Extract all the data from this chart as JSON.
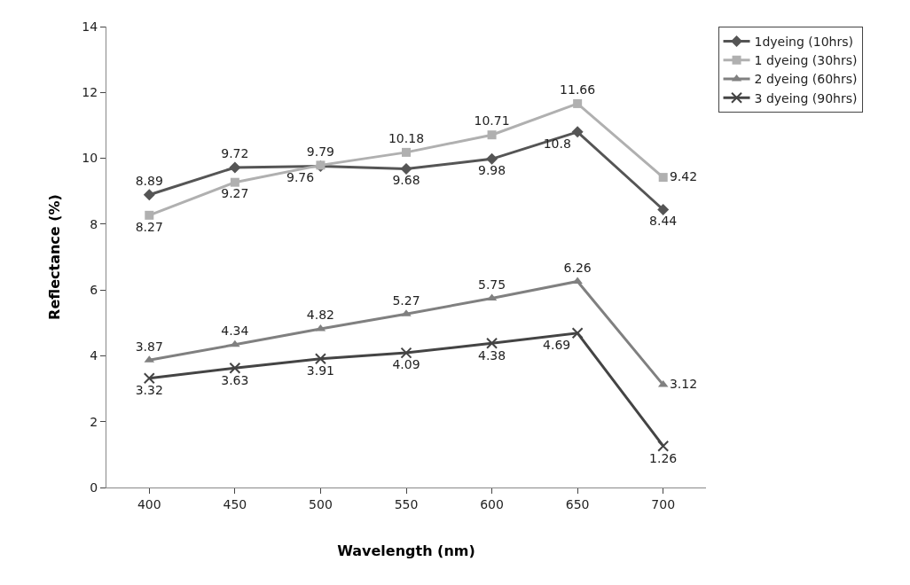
{
  "chart_data": {
    "type": "line",
    "xlabel": "Wavelength (nm)",
    "ylabel": "Reflectance (%)",
    "categories": [
      "400",
      "450",
      "500",
      "550",
      "600",
      "650",
      "700"
    ],
    "series": [
      {
        "name": "1dyeing (10hrs)",
        "color": "#555555",
        "marker": "diamond",
        "values": [
          8.89,
          9.72,
          9.76,
          9.68,
          9.98,
          10.8,
          8.44
        ]
      },
      {
        "name": "1 dyeing (30hrs)",
        "color": "#b0b0b0",
        "marker": "square",
        "values": [
          8.27,
          9.27,
          9.79,
          10.18,
          10.71,
          11.66,
          9.42
        ]
      },
      {
        "name": "2 dyeing (60hrs)",
        "color": "#808080",
        "marker": "triangle",
        "values": [
          3.87,
          4.34,
          4.82,
          5.27,
          5.75,
          6.26,
          3.12
        ]
      },
      {
        "name": "3 dyeing (90hrs)",
        "color": "#444444",
        "marker": "cross",
        "values": [
          3.32,
          3.63,
          3.91,
          4.09,
          4.38,
          4.69,
          1.26
        ]
      }
    ],
    "ylim": [
      0,
      14
    ],
    "yticks": [
      0,
      2,
      4,
      6,
      8,
      10,
      12,
      14
    ],
    "grid": false,
    "legend": "right",
    "data_labels": true
  }
}
